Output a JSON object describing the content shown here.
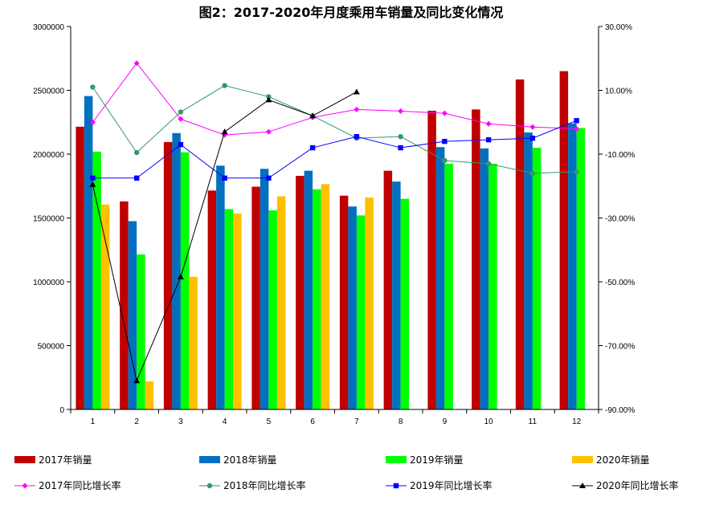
{
  "chart_data": {
    "type": "bar",
    "title": "图2：2017-2020年月度乘用车销量及同比变化情况",
    "categories": [
      "1",
      "2",
      "3",
      "4",
      "5",
      "6",
      "7",
      "8",
      "9",
      "10",
      "11",
      "12"
    ],
    "y_left": {
      "ylim": [
        0,
        3000000
      ],
      "ticks": [
        "0",
        "500000",
        "1000000",
        "1500000",
        "2000000",
        "2500000",
        "3000000"
      ]
    },
    "y_right": {
      "ylim": [
        -90,
        30
      ],
      "ticks": [
        "-90.00%",
        "-70.00%",
        "-50.00%",
        "-30.00%",
        "-10.00%",
        "10.00%",
        "30.00%"
      ]
    },
    "bar_series": [
      {
        "name": "2017年销量",
        "color": "#c00000",
        "values": [
          2215000,
          1630000,
          2095000,
          1715000,
          1745000,
          1830000,
          1675000,
          1870000,
          2340000,
          2350000,
          2585000,
          2650000
        ]
      },
      {
        "name": "2018年销量",
        "color": "#0070c0",
        "values": [
          2455000,
          1475000,
          2165000,
          1910000,
          1885000,
          1870000,
          1590000,
          1785000,
          2055000,
          2045000,
          2170000,
          2240000
        ]
      },
      {
        "name": "2019年销量",
        "color": "#00ff00",
        "values": [
          2020000,
          1215000,
          2015000,
          1570000,
          1560000,
          1725000,
          1520000,
          1650000,
          1925000,
          1925000,
          2050000,
          2205000
        ]
      },
      {
        "name": "2020年销量",
        "color": "#ffc000",
        "values": [
          1605000,
          220000,
          1040000,
          1535000,
          1670000,
          1765000,
          1660000,
          null,
          null,
          null,
          null,
          null
        ]
      }
    ],
    "line_series": [
      {
        "name": "2017年同比增长率",
        "color": "#ff00ff",
        "marker": "diamond",
        "values": [
          0.0,
          18.5,
          1.0,
          -4.0,
          -3.0,
          1.5,
          4.0,
          3.5,
          2.8,
          -0.5,
          -1.5,
          -2.0
        ]
      },
      {
        "name": "2018年同比增长率",
        "color": "#339966",
        "marker": "circle",
        "values": [
          11.0,
          -9.5,
          3.2,
          11.5,
          8.0,
          2.0,
          -5.0,
          -4.5,
          -12.0,
          -13.0,
          -16.0,
          -15.5
        ]
      },
      {
        "name": "2019年同比增长率",
        "color": "#0000ff",
        "marker": "square",
        "values": [
          -17.5,
          -17.5,
          -7.0,
          -17.5,
          -17.5,
          -8.0,
          -4.5,
          -8.0,
          -6.0,
          -5.5,
          -5.0,
          0.5
        ]
      },
      {
        "name": "2020年同比增长率",
        "color": "#000000",
        "marker": "triangle",
        "values": [
          -19.5,
          -81.0,
          -48.5,
          -3.0,
          7.0,
          2.0,
          9.5,
          null,
          null,
          null,
          null,
          null
        ]
      }
    ],
    "legend_position": "bottom",
    "grid": false
  }
}
